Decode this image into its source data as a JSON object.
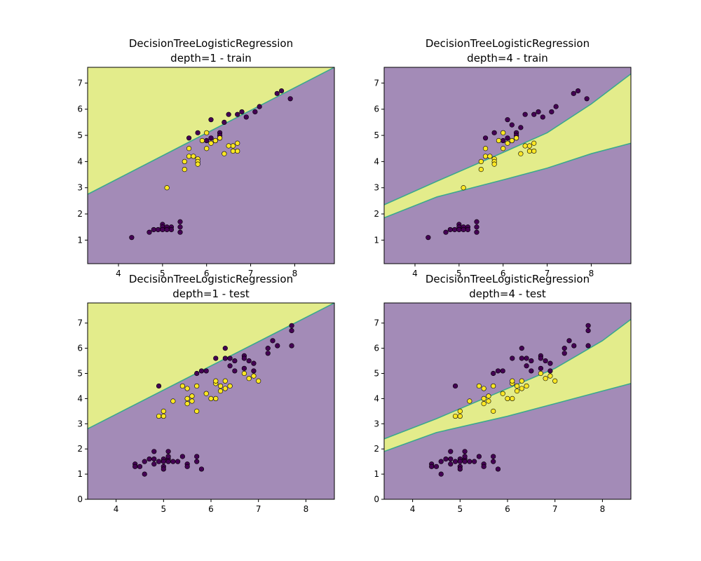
{
  "colors": {
    "class0": "#440154",
    "class1": "#fde725",
    "region0": "#a38bb7",
    "region1": "#e3ec8b",
    "boundary": "#3ba88e"
  },
  "chart_data": [
    {
      "type": "scatter",
      "title_line1": "DecisionTreeLogisticRegression",
      "title_line2": "depth=1 - train",
      "xlim": [
        3.3,
        8.9
      ],
      "ylim": [
        0.1,
        7.6
      ],
      "xticks": [
        4,
        5,
        6,
        7,
        8
      ],
      "yticks": [
        1,
        2,
        3,
        4,
        5,
        6,
        7
      ],
      "boundaries": [
        [
          [
            3.3,
            2.75
          ],
          [
            8.9,
            7.6
          ]
        ]
      ],
      "regions": "above_class1",
      "points_class0": [
        [
          4.3,
          1.1
        ],
        [
          4.7,
          1.3
        ],
        [
          4.8,
          1.4
        ],
        [
          4.9,
          1.4
        ],
        [
          5.0,
          1.6
        ],
        [
          5.0,
          1.5
        ],
        [
          5.0,
          1.4
        ],
        [
          5.1,
          1.5
        ],
        [
          5.1,
          1.4
        ],
        [
          5.2,
          1.5
        ],
        [
          5.2,
          1.4
        ],
        [
          5.4,
          1.7
        ],
        [
          5.4,
          1.5
        ],
        [
          5.4,
          1.3
        ],
        [
          5.6,
          4.9
        ],
        [
          5.8,
          5.1
        ],
        [
          6.0,
          4.8
        ],
        [
          6.1,
          5.6
        ],
        [
          6.1,
          4.9
        ],
        [
          6.2,
          4.8
        ],
        [
          6.3,
          5.1
        ],
        [
          6.3,
          5.0
        ],
        [
          6.3,
          4.9
        ],
        [
          6.4,
          5.5
        ],
        [
          6.5,
          5.8
        ],
        [
          6.7,
          5.8
        ],
        [
          6.8,
          5.9
        ],
        [
          6.9,
          5.7
        ],
        [
          7.1,
          5.9
        ],
        [
          7.2,
          6.1
        ],
        [
          7.6,
          6.6
        ],
        [
          7.7,
          6.7
        ],
        [
          7.9,
          6.4
        ]
      ],
      "points_class1": [
        [
          5.1,
          3.0
        ],
        [
          5.5,
          3.7
        ],
        [
          5.5,
          4.0
        ],
        [
          5.6,
          4.2
        ],
        [
          5.6,
          4.5
        ],
        [
          5.7,
          4.2
        ],
        [
          5.8,
          4.1
        ],
        [
          5.8,
          4.0
        ],
        [
          5.8,
          3.9
        ],
        [
          5.9,
          4.8
        ],
        [
          6.0,
          5.1
        ],
        [
          6.0,
          4.5
        ],
        [
          6.1,
          4.7
        ],
        [
          6.2,
          4.8
        ],
        [
          6.3,
          4.9
        ],
        [
          6.4,
          4.3
        ],
        [
          6.5,
          4.6
        ],
        [
          6.6,
          4.6
        ],
        [
          6.6,
          4.4
        ],
        [
          6.7,
          4.4
        ],
        [
          6.7,
          4.7
        ]
      ]
    },
    {
      "type": "scatter",
      "title_line1": "DecisionTreeLogisticRegression",
      "title_line2": "depth=4 - train",
      "xlim": [
        3.3,
        8.9
      ],
      "ylim": [
        0.1,
        7.6
      ],
      "xticks": [
        4,
        5,
        6,
        7,
        8
      ],
      "yticks": [
        1,
        2,
        3,
        4,
        5,
        6,
        7
      ],
      "boundaries": [
        [
          [
            3.3,
            2.35
          ],
          [
            4.5,
            3.25
          ],
          [
            6.0,
            4.35
          ],
          [
            7.0,
            5.1
          ],
          [
            8.0,
            6.2
          ],
          [
            8.9,
            7.35
          ]
        ],
        [
          [
            3.3,
            1.85
          ],
          [
            4.5,
            2.65
          ],
          [
            6.0,
            3.3
          ],
          [
            7.0,
            3.75
          ],
          [
            8.0,
            4.3
          ],
          [
            8.9,
            4.7
          ]
        ]
      ],
      "regions": "band_class1",
      "points_class0": [
        [
          4.3,
          1.1
        ],
        [
          4.7,
          1.3
        ],
        [
          4.8,
          1.4
        ],
        [
          4.9,
          1.4
        ],
        [
          5.0,
          1.6
        ],
        [
          5.0,
          1.5
        ],
        [
          5.0,
          1.4
        ],
        [
          5.1,
          1.5
        ],
        [
          5.1,
          1.4
        ],
        [
          5.2,
          1.5
        ],
        [
          5.2,
          1.4
        ],
        [
          5.4,
          1.7
        ],
        [
          5.4,
          1.5
        ],
        [
          5.4,
          1.3
        ],
        [
          5.6,
          4.9
        ],
        [
          5.8,
          5.1
        ],
        [
          6.0,
          4.8
        ],
        [
          6.1,
          5.6
        ],
        [
          6.1,
          4.9
        ],
        [
          6.2,
          4.8
        ],
        [
          6.2,
          5.4
        ],
        [
          6.3,
          5.1
        ],
        [
          6.3,
          5.0
        ],
        [
          6.3,
          4.9
        ],
        [
          6.4,
          5.3
        ],
        [
          6.5,
          5.8
        ],
        [
          6.7,
          5.8
        ],
        [
          6.8,
          5.9
        ],
        [
          6.9,
          5.7
        ],
        [
          7.1,
          5.9
        ],
        [
          7.2,
          6.1
        ],
        [
          7.6,
          6.6
        ],
        [
          7.7,
          6.7
        ],
        [
          7.9,
          6.4
        ]
      ],
      "points_class1": [
        [
          5.1,
          3.0
        ],
        [
          5.5,
          3.7
        ],
        [
          5.5,
          4.0
        ],
        [
          5.6,
          4.2
        ],
        [
          5.6,
          4.5
        ],
        [
          5.7,
          4.2
        ],
        [
          5.8,
          4.1
        ],
        [
          5.8,
          4.0
        ],
        [
          5.8,
          3.9
        ],
        [
          5.9,
          4.8
        ],
        [
          6.0,
          5.1
        ],
        [
          6.0,
          4.5
        ],
        [
          6.1,
          4.7
        ],
        [
          6.2,
          4.8
        ],
        [
          6.3,
          4.9
        ],
        [
          6.4,
          4.3
        ],
        [
          6.5,
          4.6
        ],
        [
          6.6,
          4.6
        ],
        [
          6.6,
          4.4
        ],
        [
          6.7,
          4.4
        ],
        [
          6.7,
          4.7
        ]
      ]
    },
    {
      "type": "scatter",
      "title_line1": "DecisionTreeLogisticRegression",
      "title_line2": "depth=1 - test",
      "xlim": [
        3.4,
        8.6
      ],
      "ylim": [
        0,
        7.8
      ],
      "xticks": [
        4,
        5,
        6,
        7,
        8
      ],
      "yticks": [
        0,
        1,
        2,
        3,
        4,
        5,
        6,
        7
      ],
      "boundaries": [
        [
          [
            3.4,
            2.8
          ],
          [
            8.6,
            7.8
          ]
        ]
      ],
      "regions": "above_class1",
      "points_class0": [
        [
          4.4,
          1.4
        ],
        [
          4.4,
          1.3
        ],
        [
          4.5,
          1.3
        ],
        [
          4.6,
          1.5
        ],
        [
          4.6,
          1.0
        ],
        [
          4.7,
          1.6
        ],
        [
          4.8,
          1.6
        ],
        [
          4.8,
          1.9
        ],
        [
          4.8,
          1.4
        ],
        [
          4.9,
          1.5
        ],
        [
          4.9,
          4.5
        ],
        [
          5.0,
          1.6
        ],
        [
          5.0,
          1.5
        ],
        [
          5.0,
          1.3
        ],
        [
          5.0,
          1.2
        ],
        [
          5.1,
          1.6
        ],
        [
          5.1,
          1.9
        ],
        [
          5.1,
          1.5
        ],
        [
          5.1,
          1.7
        ],
        [
          5.2,
          1.5
        ],
        [
          5.3,
          1.5
        ],
        [
          5.4,
          1.7
        ],
        [
          5.5,
          1.4
        ],
        [
          5.5,
          1.3
        ],
        [
          5.7,
          1.7
        ],
        [
          5.7,
          1.5
        ],
        [
          5.7,
          5.0
        ],
        [
          5.8,
          5.1
        ],
        [
          5.8,
          1.2
        ],
        [
          5.9,
          5.1
        ],
        [
          6.1,
          5.6
        ],
        [
          6.3,
          6.0
        ],
        [
          6.3,
          5.6
        ],
        [
          6.4,
          5.6
        ],
        [
          6.4,
          5.3
        ],
        [
          6.5,
          5.5
        ],
        [
          6.5,
          5.1
        ],
        [
          6.7,
          5.7
        ],
        [
          6.7,
          5.6
        ],
        [
          6.7,
          5.2
        ],
        [
          6.8,
          5.5
        ],
        [
          6.9,
          5.4
        ],
        [
          6.9,
          5.1
        ],
        [
          7.2,
          6.0
        ],
        [
          7.2,
          5.8
        ],
        [
          7.3,
          6.3
        ],
        [
          7.4,
          6.1
        ],
        [
          7.7,
          6.9
        ],
        [
          7.7,
          6.7
        ],
        [
          7.7,
          6.1
        ]
      ],
      "points_class1": [
        [
          4.9,
          3.3
        ],
        [
          5.0,
          3.3
        ],
        [
          5.0,
          3.5
        ],
        [
          5.2,
          3.9
        ],
        [
          5.4,
          4.5
        ],
        [
          5.5,
          4.4
        ],
        [
          5.5,
          4.0
        ],
        [
          5.5,
          3.8
        ],
        [
          5.6,
          3.9
        ],
        [
          5.6,
          4.1
        ],
        [
          5.7,
          3.5
        ],
        [
          5.7,
          4.5
        ],
        [
          5.9,
          4.2
        ],
        [
          6.0,
          4.0
        ],
        [
          6.1,
          4.0
        ],
        [
          6.1,
          4.6
        ],
        [
          6.1,
          4.7
        ],
        [
          6.2,
          4.3
        ],
        [
          6.2,
          4.5
        ],
        [
          6.3,
          4.4
        ],
        [
          6.3,
          4.7
        ],
        [
          6.4,
          4.5
        ],
        [
          6.7,
          5.0
        ],
        [
          6.8,
          4.8
        ],
        [
          6.9,
          4.9
        ],
        [
          7.0,
          4.7
        ]
      ]
    },
    {
      "type": "scatter",
      "title_line1": "DecisionTreeLogisticRegression",
      "title_line2": "depth=4 - test",
      "xlim": [
        3.4,
        8.6
      ],
      "ylim": [
        0,
        7.8
      ],
      "xticks": [
        4,
        5,
        6,
        7,
        8
      ],
      "yticks": [
        0,
        1,
        2,
        3,
        4,
        5,
        6,
        7
      ],
      "boundaries": [
        [
          [
            3.4,
            2.4
          ],
          [
            4.5,
            3.2
          ],
          [
            6.0,
            4.4
          ],
          [
            7.0,
            5.2
          ],
          [
            8.0,
            6.3
          ],
          [
            8.6,
            7.15
          ]
        ],
        [
          [
            3.4,
            1.9
          ],
          [
            4.5,
            2.65
          ],
          [
            6.0,
            3.3
          ],
          [
            7.0,
            3.8
          ],
          [
            8.0,
            4.3
          ],
          [
            8.6,
            4.6
          ]
        ]
      ],
      "regions": "band_class1",
      "points_class0": [
        [
          4.4,
          1.4
        ],
        [
          4.4,
          1.3
        ],
        [
          4.5,
          1.3
        ],
        [
          4.6,
          1.5
        ],
        [
          4.6,
          1.0
        ],
        [
          4.7,
          1.6
        ],
        [
          4.8,
          1.6
        ],
        [
          4.8,
          1.9
        ],
        [
          4.8,
          1.4
        ],
        [
          4.9,
          1.5
        ],
        [
          4.9,
          4.5
        ],
        [
          5.0,
          1.6
        ],
        [
          5.0,
          1.5
        ],
        [
          5.0,
          1.3
        ],
        [
          5.0,
          1.2
        ],
        [
          5.1,
          1.6
        ],
        [
          5.1,
          1.9
        ],
        [
          5.1,
          1.5
        ],
        [
          5.1,
          1.7
        ],
        [
          5.2,
          1.5
        ],
        [
          5.3,
          1.5
        ],
        [
          5.4,
          1.7
        ],
        [
          5.5,
          1.4
        ],
        [
          5.5,
          1.3
        ],
        [
          5.7,
          1.7
        ],
        [
          5.7,
          1.5
        ],
        [
          5.7,
          5.0
        ],
        [
          5.8,
          5.1
        ],
        [
          5.8,
          1.2
        ],
        [
          5.9,
          5.1
        ],
        [
          6.1,
          5.6
        ],
        [
          6.3,
          6.0
        ],
        [
          6.3,
          5.6
        ],
        [
          6.4,
          5.6
        ],
        [
          6.4,
          5.3
        ],
        [
          6.5,
          5.5
        ],
        [
          6.5,
          5.1
        ],
        [
          6.7,
          5.7
        ],
        [
          6.7,
          5.6
        ],
        [
          6.7,
          5.2
        ],
        [
          6.8,
          5.5
        ],
        [
          6.9,
          5.4
        ],
        [
          6.9,
          5.1
        ],
        [
          7.2,
          6.0
        ],
        [
          7.2,
          5.8
        ],
        [
          7.3,
          6.3
        ],
        [
          7.4,
          6.1
        ],
        [
          7.7,
          6.9
        ],
        [
          7.7,
          6.7
        ],
        [
          7.7,
          6.1
        ]
      ],
      "points_class1": [
        [
          4.9,
          3.3
        ],
        [
          5.0,
          3.3
        ],
        [
          5.0,
          3.5
        ],
        [
          5.2,
          3.9
        ],
        [
          5.4,
          4.5
        ],
        [
          5.5,
          4.4
        ],
        [
          5.5,
          4.0
        ],
        [
          5.5,
          3.8
        ],
        [
          5.6,
          3.9
        ],
        [
          5.6,
          4.1
        ],
        [
          5.7,
          3.5
        ],
        [
          5.7,
          4.5
        ],
        [
          5.9,
          4.2
        ],
        [
          6.0,
          4.0
        ],
        [
          6.1,
          4.0
        ],
        [
          6.1,
          4.6
        ],
        [
          6.1,
          4.7
        ],
        [
          6.2,
          4.3
        ],
        [
          6.2,
          4.5
        ],
        [
          6.3,
          4.4
        ],
        [
          6.3,
          4.7
        ],
        [
          6.4,
          4.5
        ],
        [
          6.7,
          5.0
        ],
        [
          6.8,
          4.8
        ],
        [
          6.9,
          4.9
        ],
        [
          7.0,
          4.7
        ]
      ]
    }
  ]
}
